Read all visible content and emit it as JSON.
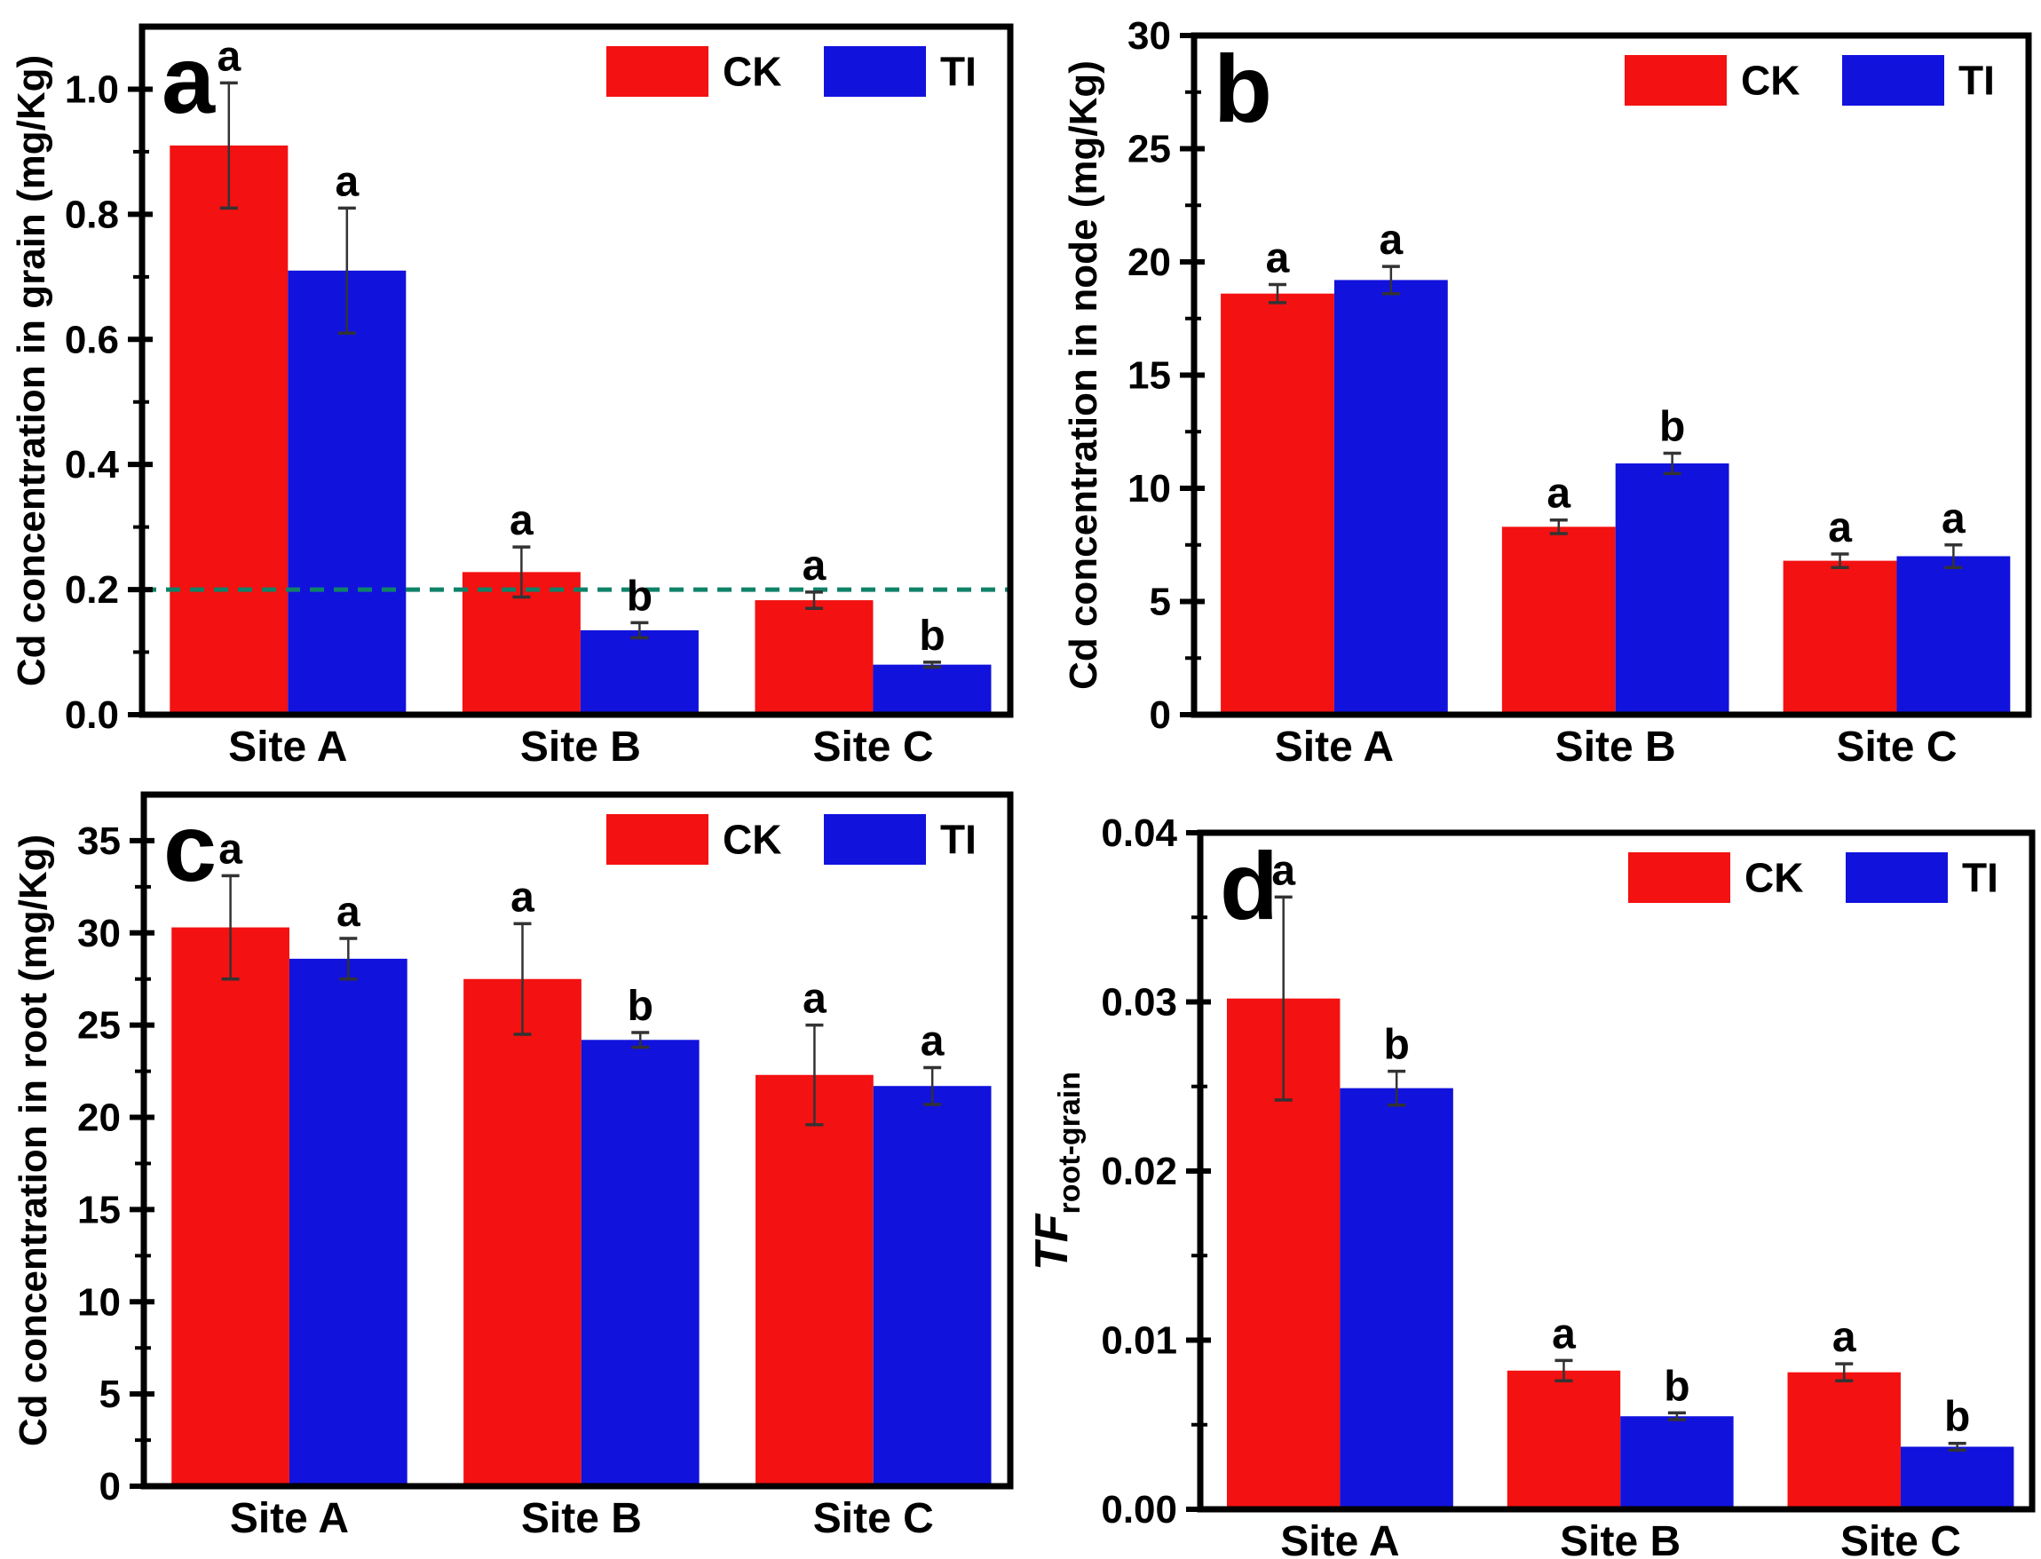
{
  "figure": {
    "background": "#ffffff",
    "frame_color": "#000000",
    "error_bar_color": "#333333",
    "categories": [
      "Site A",
      "Site B",
      "Site C"
    ],
    "legend": {
      "position": "top-right",
      "items": [
        {
          "label": "CK",
          "color": "#f31111"
        },
        {
          "label": "TI",
          "color": "#1212dd"
        }
      ]
    }
  },
  "chart_data": [
    {
      "id": "panel-a",
      "panel_label": "a",
      "type": "bar",
      "title": "",
      "xlabel": "",
      "ylabel": "Cd concentration in grain (mg/Kg)",
      "categories": [
        "Site A",
        "Site B",
        "Site C"
      ],
      "ylim": [
        0,
        1.1
      ],
      "grid": false,
      "legend_position": "top-right",
      "yticks": [
        {
          "value": 0.0,
          "label": "0.0"
        },
        {
          "value": 0.2,
          "label": "0.2"
        },
        {
          "value": 0.4,
          "label": "0.4"
        },
        {
          "value": 0.6,
          "label": "0.6"
        },
        {
          "value": 0.8,
          "label": "0.8"
        },
        {
          "value": 1.0,
          "label": "1.0"
        }
      ],
      "minor_tick_step": 0.1,
      "series": [
        {
          "name": "CK",
          "color": "#f31111",
          "values": [
            0.91,
            0.228,
            0.183
          ],
          "errors": [
            0.1,
            0.04,
            0.013
          ],
          "sig_letters": [
            "a",
            "a",
            "a"
          ]
        },
        {
          "name": "TI",
          "color": "#1212dd",
          "values": [
            0.71,
            0.135,
            0.08
          ],
          "errors": [
            0.1,
            0.012,
            0.004
          ],
          "sig_letters": [
            "a",
            "b",
            "b"
          ]
        }
      ],
      "reference_line": {
        "y": 0.2,
        "color": "#0f8268",
        "style": "dashed"
      }
    },
    {
      "id": "panel-b",
      "panel_label": "b",
      "type": "bar",
      "title": "",
      "xlabel": "",
      "ylabel": "Cd concentration in node (mg/Kg)",
      "categories": [
        "Site A",
        "Site B",
        "Site C"
      ],
      "ylim": [
        0,
        30
      ],
      "grid": false,
      "legend_position": "top-right",
      "yticks": [
        {
          "value": 0,
          "label": "0"
        },
        {
          "value": 5,
          "label": "5"
        },
        {
          "value": 10,
          "label": "10"
        },
        {
          "value": 15,
          "label": "15"
        },
        {
          "value": 20,
          "label": "20"
        },
        {
          "value": 25,
          "label": "25"
        },
        {
          "value": 30,
          "label": "30"
        }
      ],
      "minor_tick_step": 2.5,
      "series": [
        {
          "name": "CK",
          "color": "#f31111",
          "values": [
            18.6,
            8.3,
            6.8
          ],
          "errors": [
            0.4,
            0.3,
            0.3
          ],
          "sig_letters": [
            "a",
            "a",
            "a"
          ]
        },
        {
          "name": "TI",
          "color": "#1212dd",
          "values": [
            19.2,
            11.1,
            7.0
          ],
          "errors": [
            0.6,
            0.45,
            0.5
          ],
          "sig_letters": [
            "a",
            "b",
            "a"
          ]
        }
      ]
    },
    {
      "id": "panel-c",
      "panel_label": "c",
      "type": "bar",
      "title": "",
      "xlabel": "",
      "ylabel": "Cd concentration in root (mg/Kg)",
      "categories": [
        "Site A",
        "Site B",
        "Site C"
      ],
      "ylim": [
        0,
        37.5
      ],
      "grid": false,
      "legend_position": "top-right",
      "yticks": [
        {
          "value": 0,
          "label": "0"
        },
        {
          "value": 5,
          "label": "5"
        },
        {
          "value": 10,
          "label": "10"
        },
        {
          "value": 15,
          "label": "15"
        },
        {
          "value": 20,
          "label": "20"
        },
        {
          "value": 25,
          "label": "25"
        },
        {
          "value": 30,
          "label": "30"
        },
        {
          "value": 35,
          "label": "35"
        }
      ],
      "minor_tick_step": 2.5,
      "series": [
        {
          "name": "CK",
          "color": "#f31111",
          "values": [
            30.3,
            27.5,
            22.3
          ],
          "errors": [
            2.8,
            3.0,
            2.7
          ],
          "sig_letters": [
            "a",
            "a",
            "a"
          ]
        },
        {
          "name": "TI",
          "color": "#1212dd",
          "values": [
            28.6,
            24.2,
            21.7
          ],
          "errors": [
            1.1,
            0.4,
            1.0
          ],
          "sig_letters": [
            "a",
            "b",
            "a"
          ]
        }
      ]
    },
    {
      "id": "panel-d",
      "panel_label": "d",
      "type": "bar",
      "title": "",
      "xlabel": "",
      "ylabel": {
        "main": "TF",
        "main_style": "italic",
        "sub": "root-grain"
      },
      "categories": [
        "Site A",
        "Site B",
        "Site C"
      ],
      "ylim": [
        0,
        0.04
      ],
      "grid": false,
      "legend_position": "top-right",
      "yticks": [
        {
          "value": 0.0,
          "label": "0.00"
        },
        {
          "value": 0.01,
          "label": "0.01"
        },
        {
          "value": 0.02,
          "label": "0.02"
        },
        {
          "value": 0.03,
          "label": "0.03"
        },
        {
          "value": 0.04,
          "label": "0.04"
        }
      ],
      "minor_tick_step": 0.005,
      "series": [
        {
          "name": "CK",
          "color": "#f31111",
          "values": [
            0.0302,
            0.0082,
            0.0081
          ],
          "errors": [
            0.006,
            0.0006,
            0.0005
          ],
          "sig_letters": [
            "a",
            "a",
            "a"
          ]
        },
        {
          "name": "TI",
          "color": "#1212dd",
          "values": [
            0.0249,
            0.0055,
            0.0037
          ],
          "errors": [
            0.001,
            0.0002,
            0.0002
          ],
          "sig_letters": [
            "b",
            "b",
            "b"
          ]
        }
      ]
    }
  ]
}
